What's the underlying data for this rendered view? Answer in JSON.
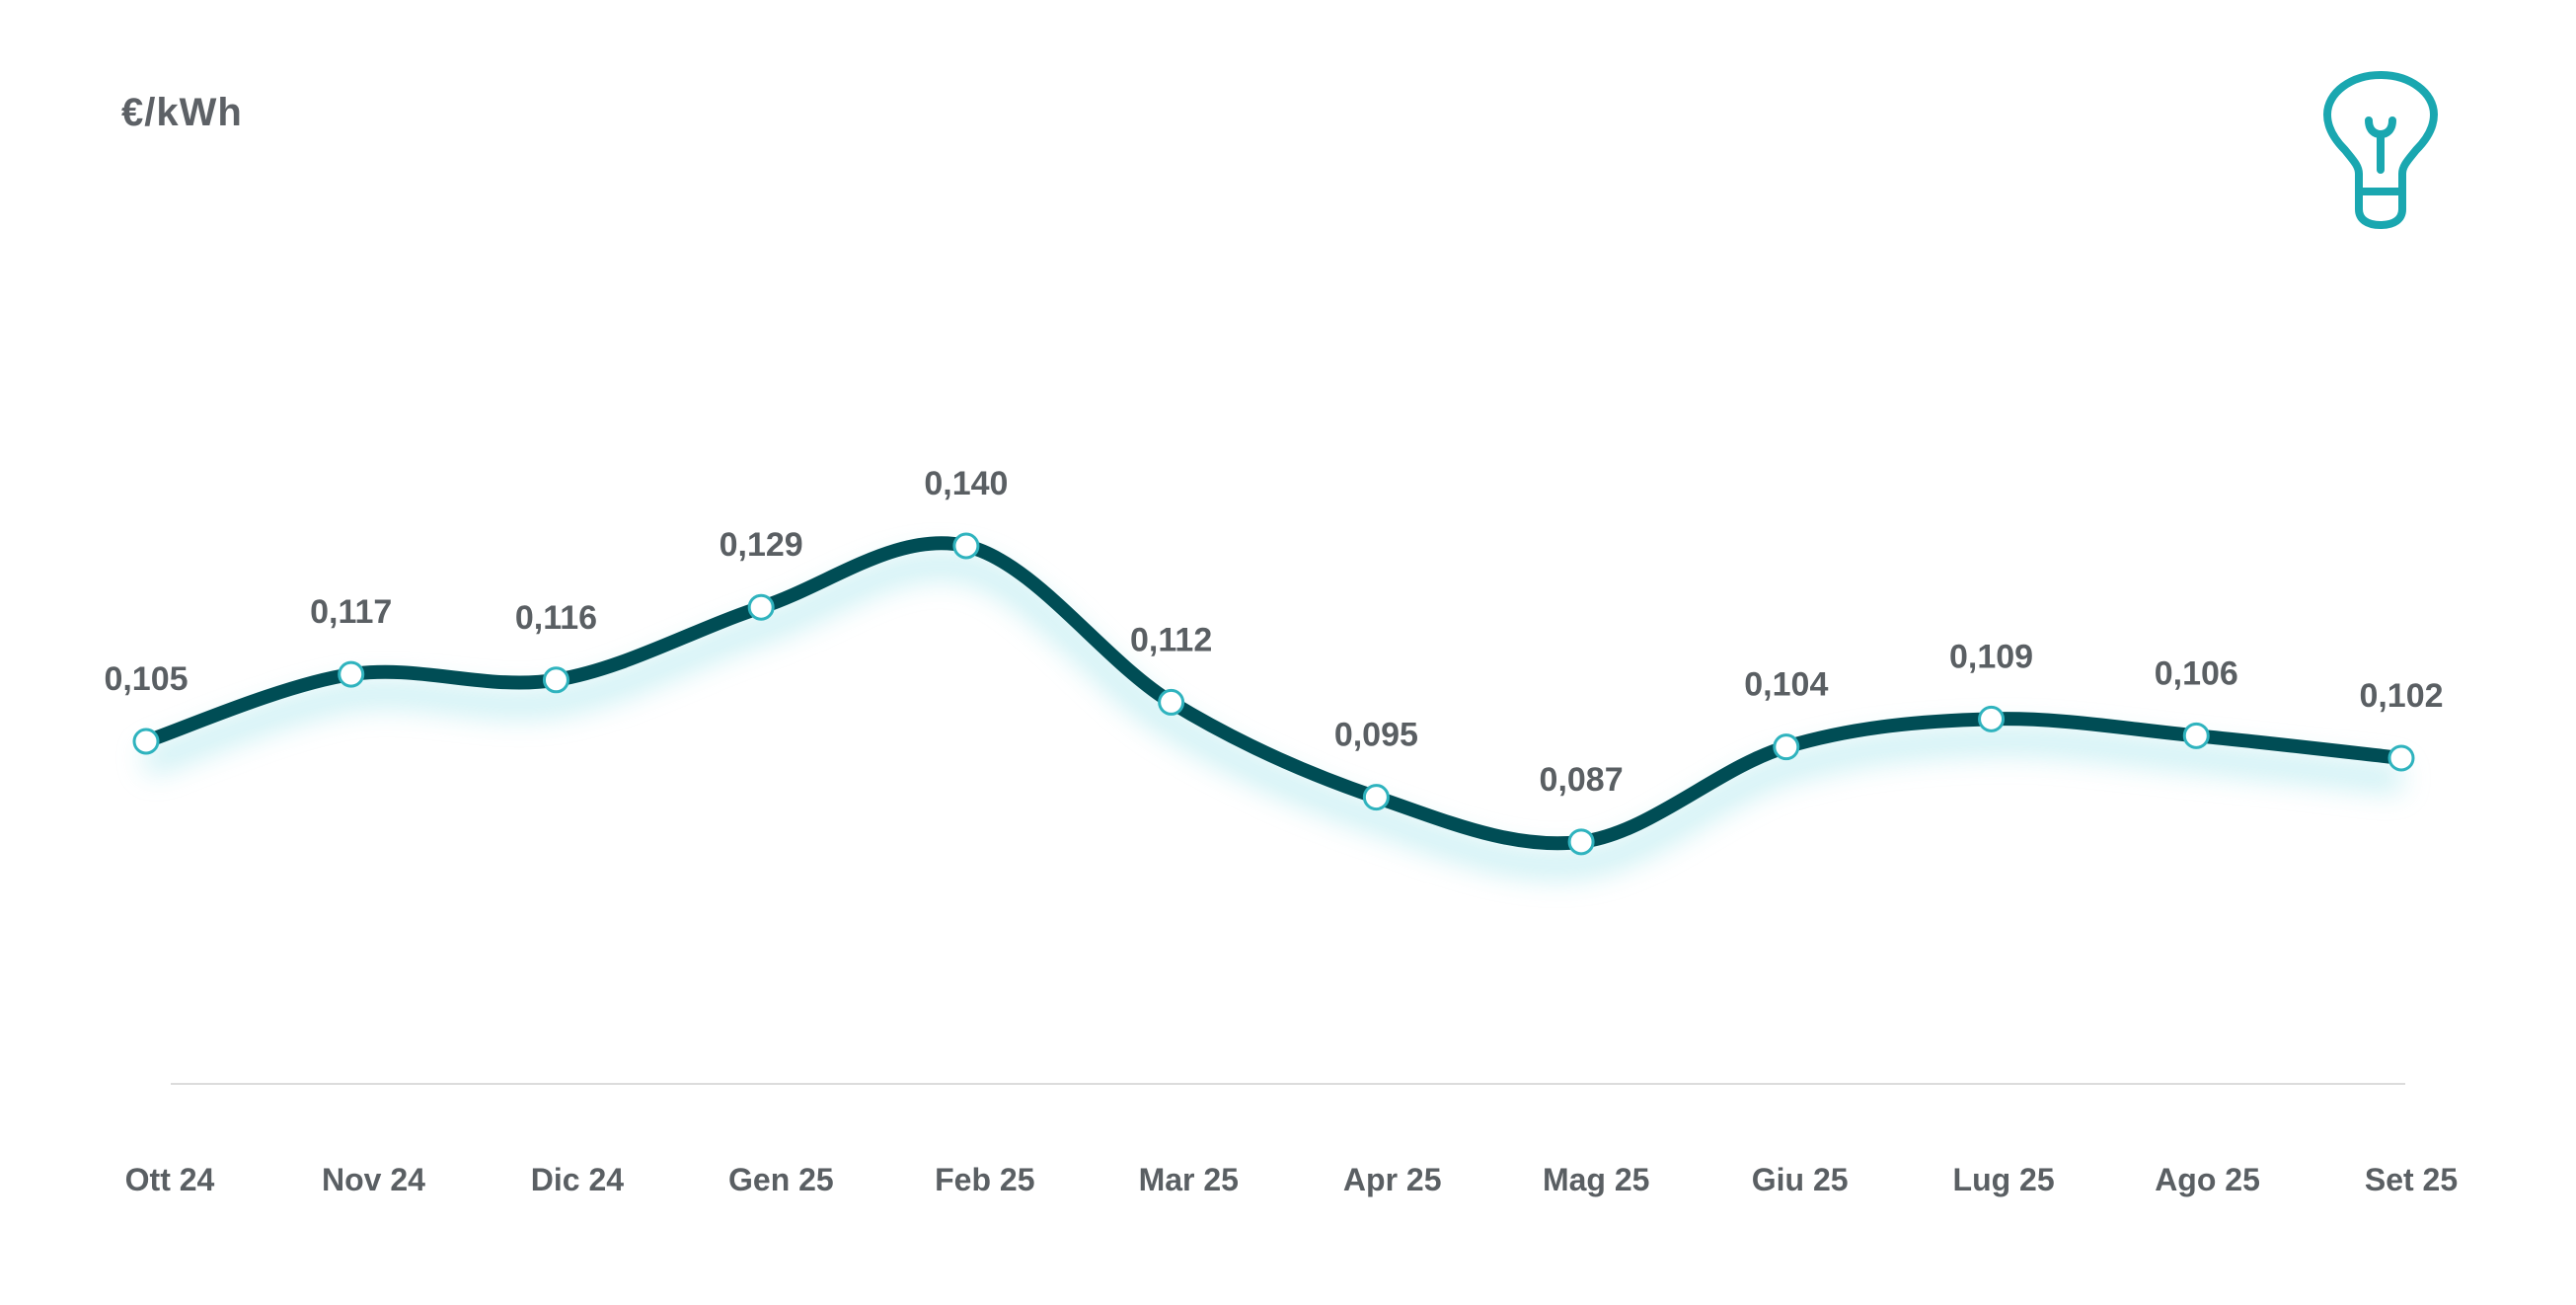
{
  "chart_data": {
    "type": "line",
    "unit": "€/kWh",
    "categories": [
      "Ott 24",
      "Nov 24",
      "Dic 24",
      "Gen 25",
      "Feb 25",
      "Mar 25",
      "Apr 25",
      "Mag 25",
      "Giu 25",
      "Lug 25",
      "Ago 25",
      "Set 25"
    ],
    "values": [
      0.105,
      0.117,
      0.116,
      0.129,
      0.14,
      0.112,
      0.095,
      0.087,
      0.104,
      0.109,
      0.106,
      0.102
    ],
    "labels": [
      "0,105",
      "0,117",
      "0,116",
      "0,129",
      "0,140",
      "0,112",
      "0,095",
      "0,087",
      "0,104",
      "0,109",
      "0,106",
      "0,102"
    ],
    "line_color": "#004d55",
    "glow_color": "#9fe3ea",
    "marker_stroke": "#2fb3be",
    "label_color": "#5a5f63",
    "axis_color": "#dcdcdc",
    "icon": "lightbulb-icon",
    "icon_color": "#1aa7b0"
  }
}
